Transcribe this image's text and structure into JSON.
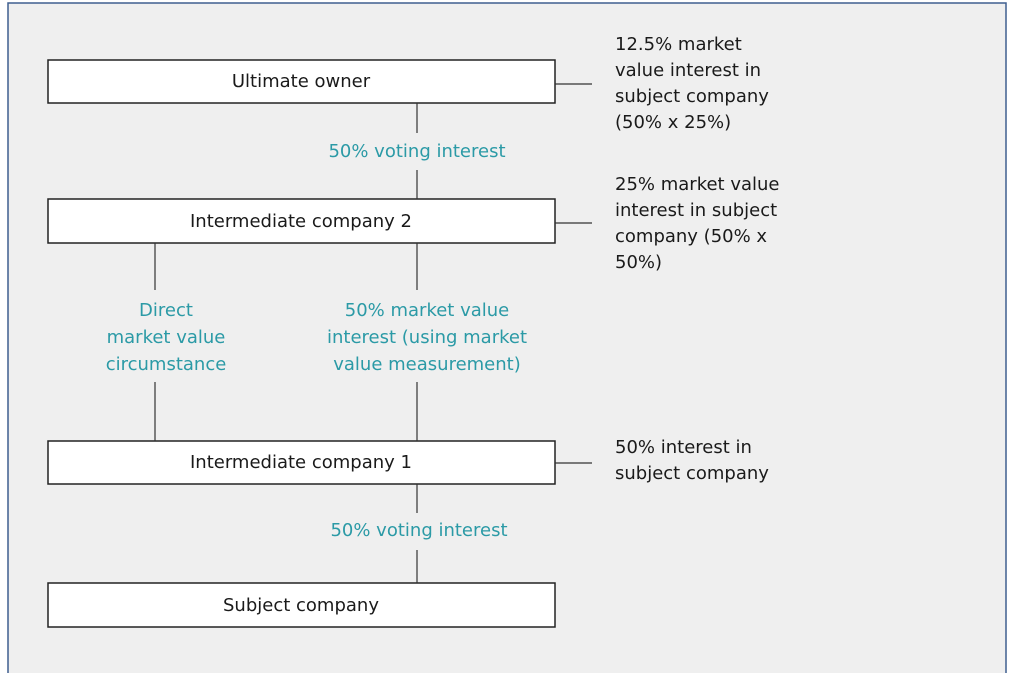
{
  "nodes": [
    {
      "label": "Ultimate owner"
    },
    {
      "label": "Intermediate company 2"
    },
    {
      "label": "Intermediate company 1"
    },
    {
      "label": "Subject company"
    }
  ],
  "edge_labels": [
    {
      "lines": [
        "50% voting interest"
      ]
    },
    {
      "lines": [
        "Direct",
        "market value",
        "circumstance"
      ]
    },
    {
      "lines": [
        "50% market value",
        "interest (using market",
        "value measurement)"
      ]
    },
    {
      "lines": [
        "50% voting interest"
      ]
    }
  ],
  "notes": [
    {
      "lines": [
        "12.5% market",
        "value interest in",
        "subject company",
        "(50% x 25%)"
      ]
    },
    {
      "lines": [
        "25% market value",
        "interest in subject",
        "company (50% x",
        "50%)"
      ]
    },
    {
      "lines": [
        "50% interest in",
        "subject company"
      ]
    }
  ]
}
